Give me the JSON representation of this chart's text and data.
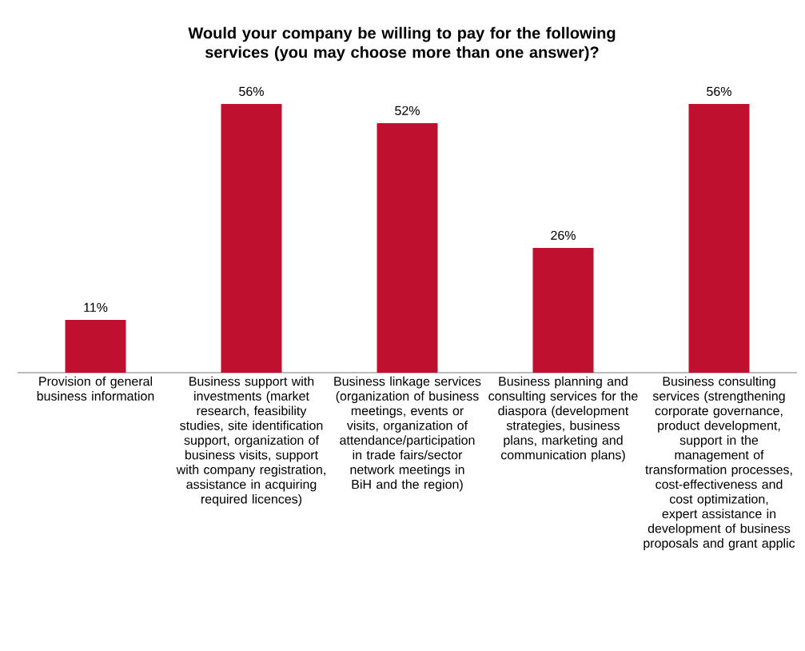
{
  "chart_data": {
    "type": "bar",
    "title": "**Would your company be willing to pay for the following services (you may choose more than one answer)?**",
    "categories": [
      "Provision of general business information",
      "Business support with investments (market research, feasibility studies, site identification support, organization of business visits, support with company registration, assistance in acquiring required licences)",
      "Business linkage services (organization of business meetings, events or visits, organization of attendance/participation in trade fairs/sector network meetings in BiH and the region)",
      "Business planning and consulting services for the diaspora (development strategies, business plans, marketing and communication plans)",
      "Business consulting services (strengthening corporate governance, product development, support in the management of transformation processes, cost-effectiveness and cost optimization, expert assistance in development of business proposals and grant applic"
    ],
    "values": [
      11,
      56,
      52,
      26,
      56
    ],
    "value_labels": [
      "11%",
      "56%",
      "52%",
      "26%",
      "56%"
    ],
    "color": "#c0102f"
  }
}
